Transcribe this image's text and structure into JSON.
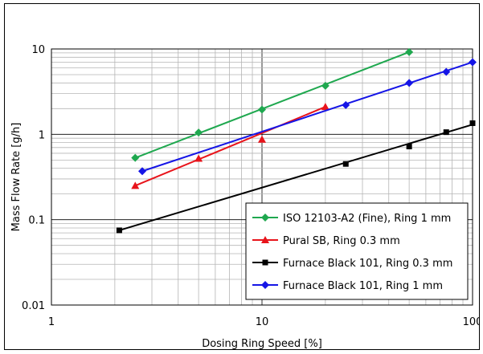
{
  "chart_data": {
    "type": "line",
    "xlabel": "Dosing Ring Speed [%]",
    "ylabel": "Mass Flow Rate [g/h]",
    "xscale": "log",
    "yscale": "log",
    "xlim": [
      1,
      100
    ],
    "ylim": [
      0.01,
      10
    ],
    "grid": true,
    "legend_position": "bottom-right",
    "xticks": [
      {
        "value": 1,
        "label": "1"
      },
      {
        "value": 10,
        "label": "10"
      },
      {
        "value": 100,
        "label": "100"
      }
    ],
    "yticks": [
      {
        "value": 0.01,
        "label": "0.01"
      },
      {
        "value": 0.1,
        "label": "0.1"
      },
      {
        "value": 1,
        "label": "1"
      },
      {
        "value": 10,
        "label": "10"
      }
    ],
    "series": [
      {
        "name": "ISO 12103-A2 (Fine), Ring 1 mm",
        "color": "#1fa84f",
        "marker": "diamond",
        "points": [
          [
            2.5,
            0.53
          ],
          [
            5,
            1.05
          ],
          [
            10,
            1.95
          ],
          [
            20,
            3.7
          ],
          [
            50,
            9.2
          ]
        ],
        "fit": [
          [
            2.5,
            0.53
          ],
          [
            50,
            9.2
          ]
        ]
      },
      {
        "name": "Pural SB, Ring 0.3 mm",
        "color": "#e8141b",
        "marker": "triangle",
        "points": [
          [
            2.5,
            0.25
          ],
          [
            5,
            0.52
          ],
          [
            10,
            0.87
          ],
          [
            20,
            2.1
          ]
        ],
        "fit": [
          [
            2.5,
            0.25
          ],
          [
            20,
            2.1
          ]
        ]
      },
      {
        "name": "Furnace Black 101, Ring 0.3 mm",
        "color": "#000000",
        "marker": "square",
        "points": [
          [
            2.1,
            0.075
          ],
          [
            25,
            0.45
          ],
          [
            50,
            0.72
          ],
          [
            75,
            1.06
          ],
          [
            100,
            1.35
          ]
        ],
        "fit": [
          [
            2.1,
            0.075
          ],
          [
            100,
            1.3
          ]
        ]
      },
      {
        "name": "Furnace Black 101, Ring 1 mm",
        "color": "#1515e6",
        "marker": "diamond",
        "points": [
          [
            2.7,
            0.37
          ],
          [
            25,
            2.2
          ],
          [
            50,
            4.0
          ],
          [
            75,
            5.4
          ],
          [
            100,
            7.0
          ]
        ],
        "fit": [
          [
            2.7,
            0.37
          ],
          [
            100,
            7.0
          ]
        ]
      }
    ]
  }
}
